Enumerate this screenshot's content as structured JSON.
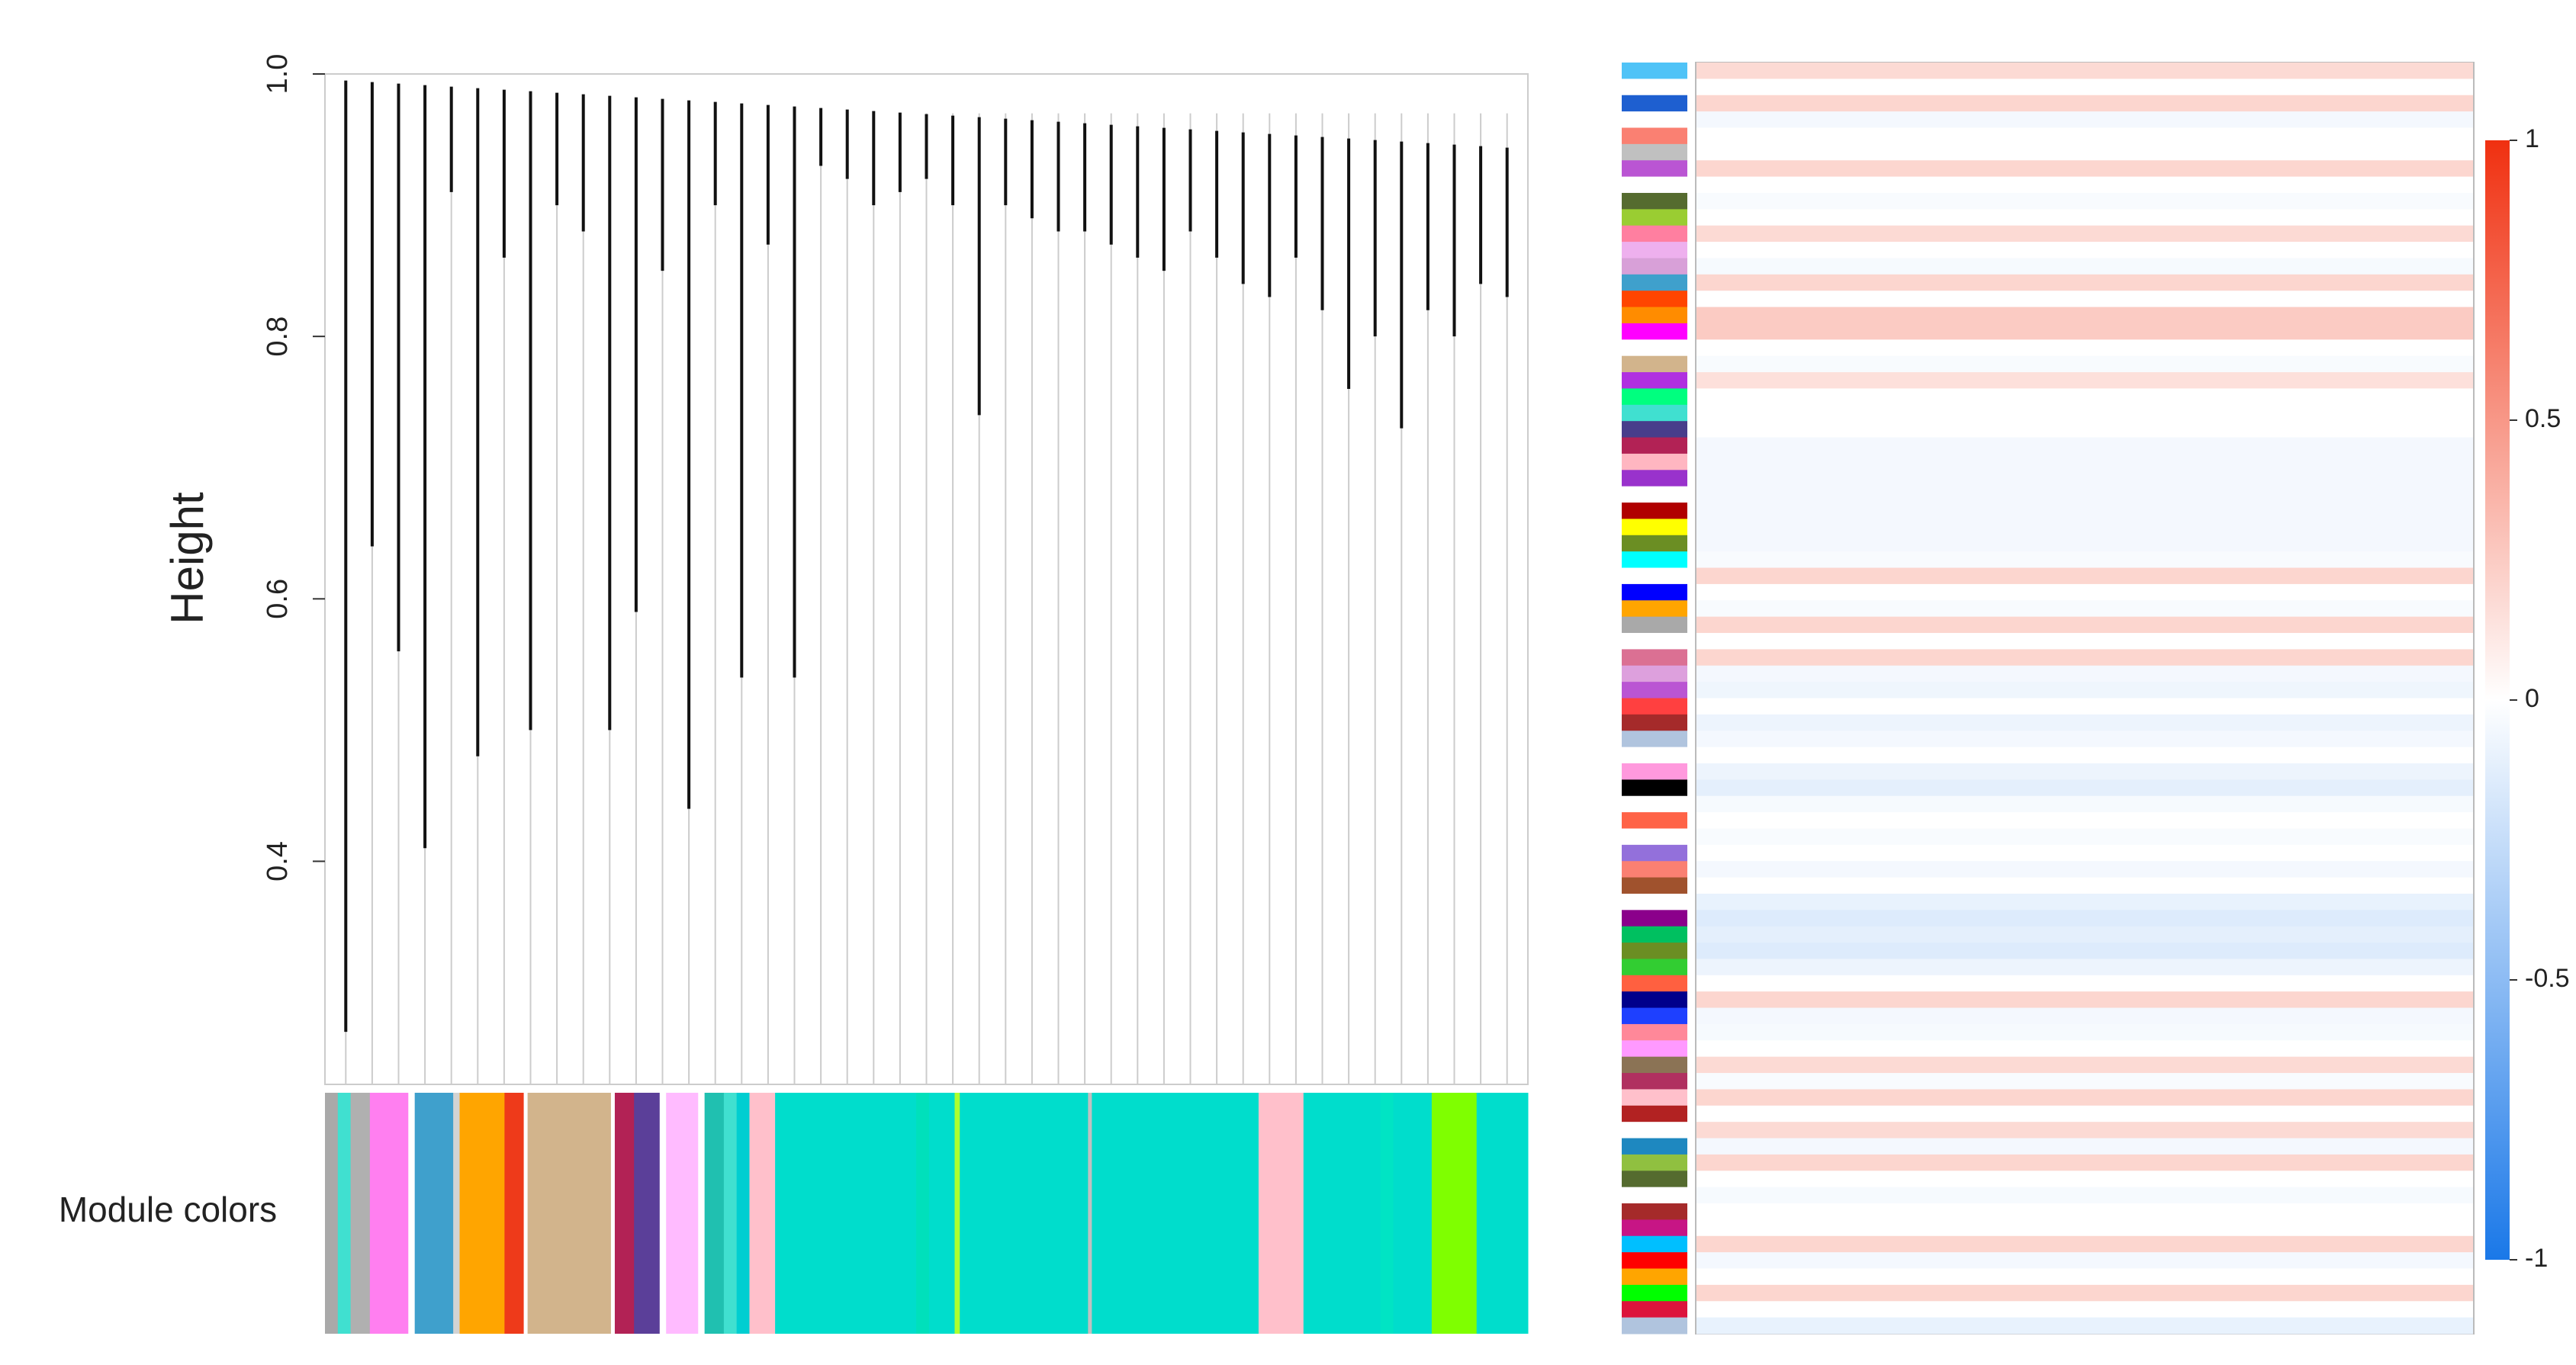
{
  "chart_data": [
    {
      "type": "dendrogram",
      "ylabel": "Height",
      "ylim": [
        0.23,
        1.0
      ],
      "yticks": [
        0.4,
        0.6,
        0.8,
        {
          "value": 1.0,
          "label": "1.0"
        }
      ],
      "values": [
        0.27,
        0.64,
        0.56,
        0.41,
        0.91,
        0.48,
        0.86,
        0.5,
        0.9,
        0.88,
        0.5,
        0.59,
        0.85,
        0.44,
        0.9,
        0.54,
        0.87,
        0.54,
        0.93,
        0.92,
        0.9,
        0.91,
        0.92,
        0.9,
        0.74,
        0.9,
        0.89,
        0.88,
        0.88,
        0.87,
        0.86,
        0.85,
        0.88,
        0.86,
        0.84,
        0.83,
        0.86,
        0.82,
        0.76,
        0.8,
        0.73,
        0.82,
        0.8,
        0.84,
        0.83
      ],
      "module_colors_label": "Module colors",
      "module_colors": [
        "#a9a9a9",
        "#40e0d0",
        "#b0b0b0",
        "#ff7ff0",
        "#ffffff",
        "#3fa0cc",
        "#d3d3d3",
        "#ffa500",
        "#ee3a1a",
        "#ffffff",
        "#d2b48c",
        "#ffffff",
        "#b22255",
        "#5b3f99",
        "#ffffff",
        "#ffbbff",
        "#ffffff",
        "#20c0b0",
        "#40e0d0",
        "#00ced1",
        "#ffc0cb",
        "#00ddcc",
        "#00e0bb",
        "#00ddcc",
        "#adff2f",
        "#00ddcc",
        "#c0c0c0",
        "#00ddcc",
        "#ffc0cb",
        "#00ddcc",
        "#00e4c4",
        "#00ddcc",
        "#7fff00",
        "#00ddcc"
      ],
      "module_sizes": [
        1,
        1,
        1.5,
        3,
        0.5,
        3,
        0.5,
        3.5,
        1.5,
        0.3,
        6.5,
        0.3,
        1.5,
        2,
        0.5,
        2.5,
        0.5,
        1.5,
        1,
        1,
        2,
        11,
        1,
        2,
        0.4,
        10,
        0.3,
        13,
        3.5,
        6,
        1,
        3,
        3.5,
        4
      ]
    },
    {
      "type": "heatmap",
      "row_colors": [
        "#4fc3f7",
        "#ffffff",
        "#1e5fd0",
        "#ffffff",
        "#fa8072",
        "#c0c0c0",
        "#ba55d3",
        "#ffffff",
        "#556b2f",
        "#9acd32",
        "#ff7fa0",
        "#eeb0ee",
        "#d8a0d8",
        "#3fa0cc",
        "#ff4500",
        "#ff8c00",
        "#ff00ff",
        "#ffffff",
        "#d2b48c",
        "#b030e0",
        "#00ff7f",
        "#40e0d0",
        "#483d8b",
        "#b22255",
        "#ffb6c1",
        "#9932cc",
        "#ffffff",
        "#b00000",
        "#ffff00",
        "#6b8e23",
        "#00ffff",
        "#ffffff",
        "#0000ff",
        "#ffa500",
        "#a9a9a9",
        "#ffffff",
        "#db7093",
        "#dda0dd",
        "#ba55d3",
        "#ff4040",
        "#a52a2a",
        "#b0c4de",
        "#ffffff",
        "#ff99dd",
        "#000000",
        "#ffffff",
        "#ff6347",
        "#ffffff",
        "#9370db",
        "#fa8072",
        "#a0522d",
        "#ffffff",
        "#8b008b",
        "#00c060",
        "#6b8e23",
        "#32cd32",
        "#ff6040",
        "#00008b",
        "#1e40ff",
        "#ff8899",
        "#ff99ff",
        "#8b7355",
        "#b03060",
        "#ffc0cb",
        "#b22222",
        "#ffffff",
        "#1e88c0",
        "#90c040",
        "#556b2f",
        "#ffffff",
        "#a52a2a",
        "#c71585",
        "#00bfff",
        "#ff0000",
        "#ffa500",
        "#00ff00",
        "#dc143c",
        "#b0c4de"
      ],
      "values": [
        0.18,
        0.0,
        0.2,
        -0.05,
        0.0,
        0.0,
        0.2,
        0.0,
        -0.03,
        0.0,
        0.18,
        0.0,
        -0.04,
        0.2,
        0.0,
        0.25,
        0.25,
        0.0,
        -0.03,
        0.15,
        0.0,
        0.0,
        0.0,
        -0.05,
        -0.05,
        -0.05,
        -0.05,
        -0.05,
        -0.05,
        -0.05,
        -0.03,
        0.2,
        0.0,
        -0.03,
        0.2,
        0.0,
        0.2,
        -0.05,
        -0.07,
        0.0,
        -0.08,
        -0.05,
        0.0,
        -0.08,
        -0.12,
        -0.04,
        0.0,
        -0.03,
        0.0,
        -0.05,
        0.0,
        -0.1,
        -0.15,
        -0.12,
        -0.15,
        -0.08,
        0.0,
        0.2,
        -0.05,
        -0.04,
        0.0,
        0.18,
        -0.03,
        0.2,
        0.0,
        0.18,
        -0.05,
        0.2,
        0.0,
        -0.04,
        0.0,
        0.0,
        0.2,
        -0.05,
        0.0,
        0.2,
        0.0,
        -0.1
      ],
      "zlim": [
        -1,
        1
      ],
      "zticks": [
        1,
        0.5,
        0,
        -0.5,
        -1
      ]
    }
  ]
}
